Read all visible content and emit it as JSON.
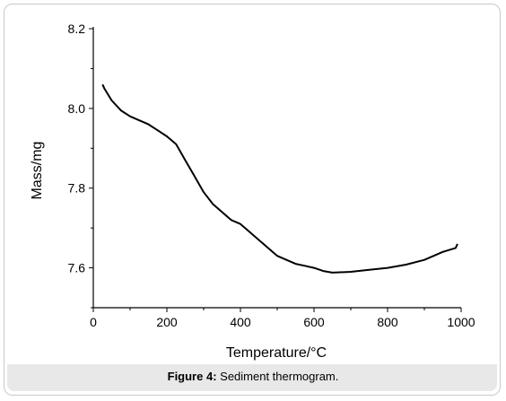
{
  "figure": {
    "caption_label": "Figure 4:",
    "caption_text": " Sediment thermogram."
  },
  "colors": {
    "line": "#000000",
    "axis": "#000000",
    "caption_bg": "#e8e8e8",
    "frame_border": "#c9c9c9"
  },
  "chart_data": {
    "type": "line",
    "title": "",
    "xlabel": "Temperature/°C",
    "ylabel": "Mass/mg",
    "xlim": [
      0,
      1000
    ],
    "ylim": [
      7.5,
      8.2
    ],
    "xticks": [
      0,
      200,
      400,
      600,
      800,
      1000
    ],
    "xtick_labels": [
      "0",
      "200",
      "400",
      "600",
      "800",
      "1000"
    ],
    "yticks": [
      7.6,
      7.8,
      8.0,
      8.2
    ],
    "ytick_labels": [
      "7.6",
      "7.8",
      "8.0",
      "8.2"
    ],
    "grid": false,
    "series": [
      {
        "x": [
          25,
          30,
          50,
          75,
          100,
          125,
          150,
          175,
          200,
          225,
          250,
          275,
          300,
          325,
          350,
          375,
          400,
          425,
          450,
          475,
          500,
          525,
          550,
          575,
          600,
          625,
          650,
          700,
          750,
          800,
          850,
          900,
          950,
          985,
          990
        ],
        "y": [
          8.06,
          8.05,
          8.02,
          7.995,
          7.98,
          7.97,
          7.96,
          7.945,
          7.93,
          7.91,
          7.87,
          7.83,
          7.79,
          7.76,
          7.74,
          7.72,
          7.71,
          7.69,
          7.67,
          7.65,
          7.63,
          7.62,
          7.61,
          7.605,
          7.6,
          7.592,
          7.588,
          7.59,
          7.595,
          7.6,
          7.608,
          7.62,
          7.64,
          7.65,
          7.66
        ]
      }
    ]
  }
}
